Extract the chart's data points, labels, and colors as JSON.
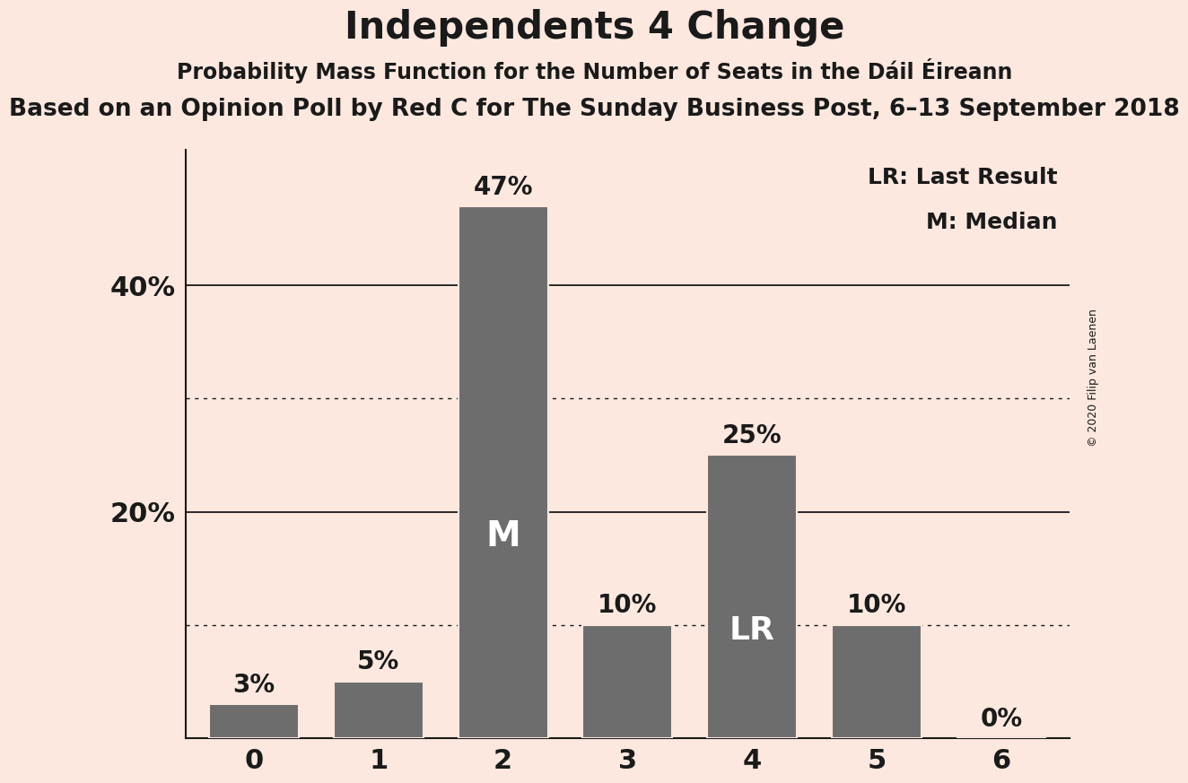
{
  "title": "Independents 4 Change",
  "subtitle1": "Probability Mass Function for the Number of Seats in the Dáil Éireann",
  "subtitle2": "Based on an Opinion Poll by Red C for The Sunday Business Post, 6–13 September 2018",
  "copyright": "© 2020 Filip van Laenen",
  "categories": [
    0,
    1,
    2,
    3,
    4,
    5,
    6
  ],
  "values": [
    3,
    5,
    47,
    10,
    25,
    10,
    0
  ],
  "bar_color": "#6d6d6d",
  "background_color": "#fce8df",
  "text_color": "#1a1a1a",
  "ytick_positions": [
    20,
    40
  ],
  "ytick_labels": [
    "20%",
    "40%"
  ],
  "solid_gridlines": [
    20,
    40
  ],
  "dotted_gridlines": [
    10,
    30
  ],
  "ylim_max": 52,
  "xlim_min": -0.55,
  "xlim_max": 6.55,
  "median_bar": 2,
  "last_result_bar": 4,
  "median_label": "M",
  "last_result_label": "LR",
  "legend_lr": "LR: Last Result",
  "legend_m": "M: Median",
  "bar_label_color_dark": "#1a1a1a",
  "bar_label_color_light": "#ffffff",
  "axis_line_color": "#1a1a1a",
  "title_fontsize": 30,
  "subtitle1_fontsize": 17,
  "subtitle2_fontsize": 19,
  "ytick_fontsize": 22,
  "xtick_fontsize": 22,
  "bar_label_fontsize": 20,
  "legend_fontsize": 18,
  "copyright_fontsize": 9,
  "inner_label_fontsize": 28,
  "bar_width": 0.72
}
